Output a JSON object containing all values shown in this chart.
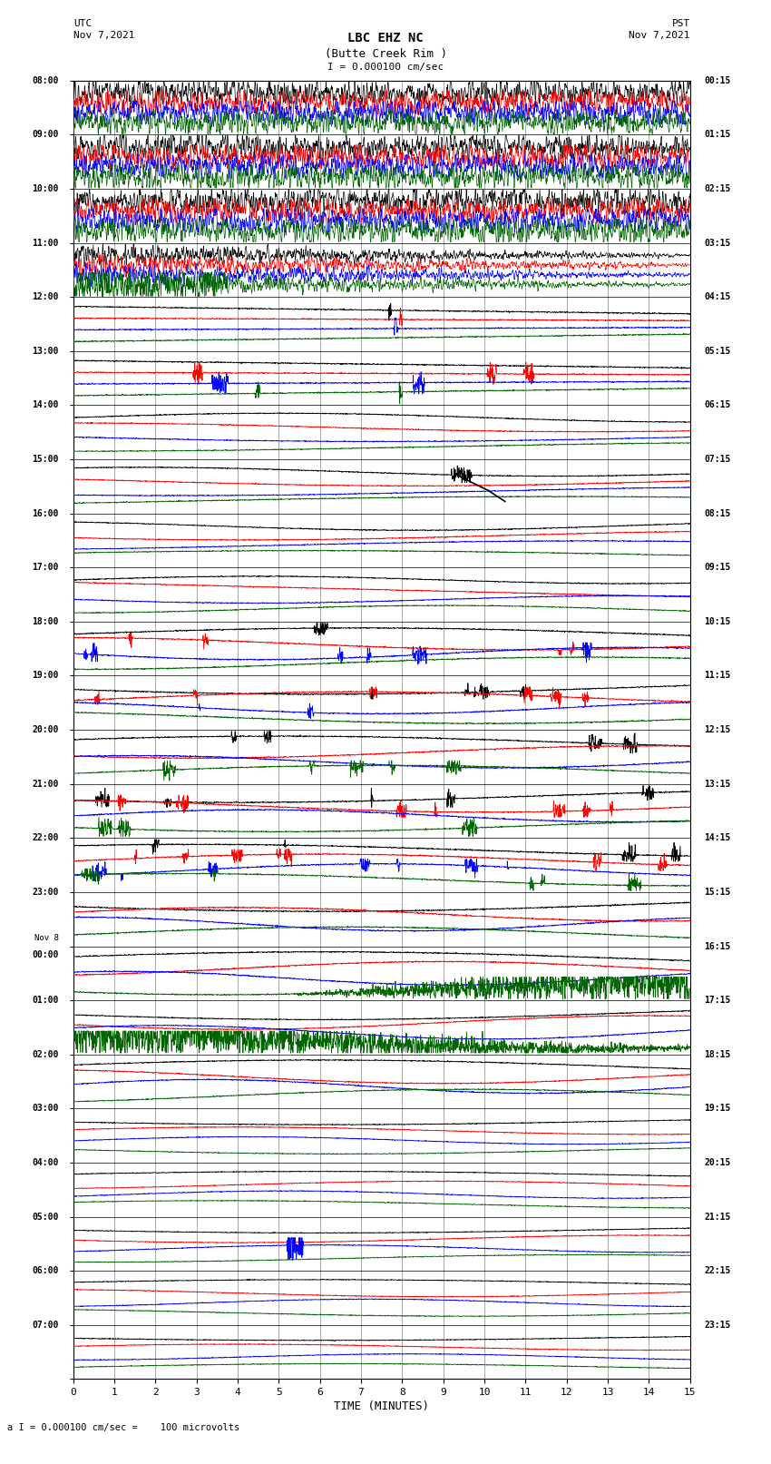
{
  "title_line1": "LBC EHZ NC",
  "title_line2": "(Butte Creek Rim )",
  "scale_label": "I = 0.000100 cm/sec",
  "left_label_top": "UTC",
  "left_label_date": "Nov 7,2021",
  "right_label_top": "PST",
  "right_label_date": "Nov 7,2021",
  "bottom_label": "TIME (MINUTES)",
  "bottom_note": "a I = 0.000100 cm/sec =    100 microvolts",
  "xlabel_ticks": [
    0,
    1,
    2,
    3,
    4,
    5,
    6,
    7,
    8,
    9,
    10,
    11,
    12,
    13,
    14,
    15
  ],
  "utc_times": [
    "08:00",
    "09:00",
    "10:00",
    "11:00",
    "12:00",
    "13:00",
    "14:00",
    "15:00",
    "16:00",
    "17:00",
    "18:00",
    "19:00",
    "20:00",
    "21:00",
    "22:00",
    "23:00",
    "Nov 8\n00:00",
    "01:00",
    "02:00",
    "03:00",
    "04:00",
    "05:00",
    "06:00",
    "07:00"
  ],
  "pst_times": [
    "00:15",
    "01:15",
    "02:15",
    "03:15",
    "04:15",
    "05:15",
    "06:15",
    "07:15",
    "08:15",
    "09:15",
    "10:15",
    "11:15",
    "12:15",
    "13:15",
    "14:15",
    "15:15",
    "16:15",
    "17:15",
    "18:15",
    "19:15",
    "20:15",
    "21:15",
    "22:15",
    "23:15"
  ],
  "n_rows": 24,
  "minutes_per_row": 15,
  "colors": {
    "background": "#ffffff",
    "black": "#000000",
    "red": "#ff0000",
    "blue": "#0000ff",
    "green": "#006400",
    "grid": "#000000"
  },
  "figsize": [
    8.5,
    16.13
  ],
  "dpi": 100
}
